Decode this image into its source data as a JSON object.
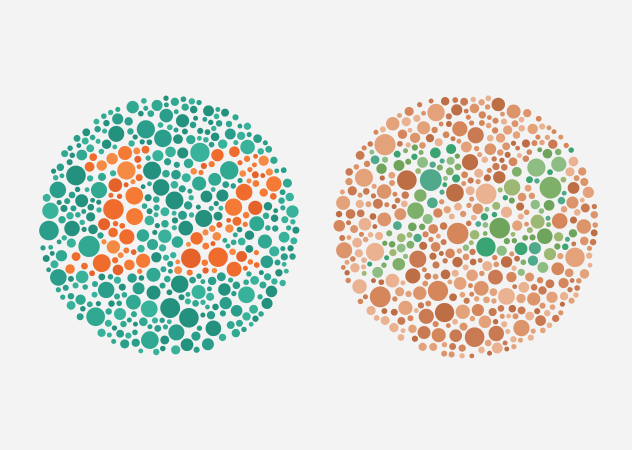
{
  "background_color": "#f3f3f3",
  "plates": [
    {
      "id": "left",
      "digits": "12",
      "background_colors": [
        "#2a9e8a",
        "#31a892",
        "#23917e",
        "#39b29b"
      ],
      "figure_colors": [
        "#ef6c2c",
        "#f47a35",
        "#e5622a",
        "#f58a45"
      ]
    },
    {
      "id": "right",
      "digits": "74",
      "background_colors": [
        "#e4a27a",
        "#d5865b",
        "#c97a52",
        "#eab290",
        "#dc946b",
        "#be6e45"
      ],
      "figure_colors": [
        "#3aa472",
        "#7fb06a",
        "#9cb872",
        "#4fa98a",
        "#6fa45c",
        "#8ebd83"
      ]
    }
  ]
}
